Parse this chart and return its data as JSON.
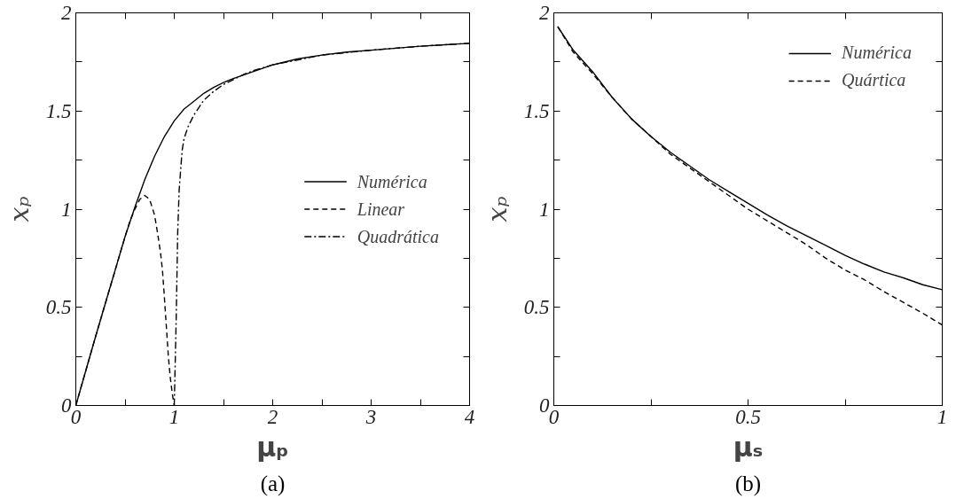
{
  "chart_data": [
    {
      "type": "line",
      "xlabel": "μₚ",
      "ylabel": "xₚ",
      "xlim": [
        0,
        4
      ],
      "ylim": [
        0,
        2
      ],
      "xticks": [
        0,
        {
          "value": 0.5,
          "label": null
        },
        1,
        {
          "value": 1.5,
          "label": null
        },
        2,
        {
          "value": 2.5,
          "label": null
        },
        3,
        {
          "value": 3.5,
          "label": null
        },
        4
      ],
      "yticks": [
        0,
        {
          "value": 0.25,
          "label": null
        },
        0.5,
        {
          "value": 0.75,
          "label": null
        },
        1,
        {
          "value": 1.25,
          "label": null
        },
        1.5,
        {
          "value": 1.75,
          "label": null
        },
        2
      ],
      "legend": "right",
      "annotations": [
        "(a)"
      ],
      "series": [
        {
          "name": "Numérica",
          "color": "#000000",
          "line_style": "solid",
          "x": [
            0,
            0.1,
            0.2,
            0.3,
            0.4,
            0.5,
            0.6,
            0.7,
            0.8,
            0.9,
            1.0,
            1.1,
            1.2,
            1.3,
            1.4,
            1.5,
            1.6,
            1.8,
            2.0,
            2.25,
            2.5,
            2.75,
            3.0,
            3.5,
            4.0
          ],
          "values": [
            0,
            0.175,
            0.35,
            0.52,
            0.69,
            0.86,
            1.01,
            1.15,
            1.27,
            1.37,
            1.45,
            1.51,
            1.55,
            1.59,
            1.62,
            1.645,
            1.665,
            1.7,
            1.735,
            1.765,
            1.785,
            1.8,
            1.81,
            1.83,
            1.845
          ]
        },
        {
          "name": "Linear",
          "color": "#000000",
          "line_style": "dashed",
          "x": [
            0,
            0.1,
            0.2,
            0.3,
            0.4,
            0.5,
            0.55,
            0.6,
            0.65,
            0.7,
            0.75,
            0.8,
            0.83,
            0.86,
            0.88,
            0.9,
            0.92,
            0.94,
            0.96,
            0.98,
            1.0
          ],
          "values": [
            0,
            0.175,
            0.35,
            0.52,
            0.69,
            0.86,
            0.94,
            1.0,
            1.05,
            1.07,
            1.05,
            0.97,
            0.88,
            0.78,
            0.69,
            0.55,
            0.4,
            0.25,
            0.14,
            0.06,
            0
          ]
        },
        {
          "name": "Quadrática",
          "color": "#000000",
          "line_style": "dashdot",
          "x": [
            1.0,
            1.02,
            1.035,
            1.05,
            1.08,
            1.1,
            1.14,
            1.2,
            1.3,
            1.4,
            1.5,
            1.6,
            1.7,
            1.8,
            2.0,
            2.5,
            3.0,
            3.5,
            4.0
          ],
          "values": [
            0,
            0.45,
            0.88,
            1.1,
            1.3,
            1.36,
            1.42,
            1.48,
            1.555,
            1.6,
            1.635,
            1.66,
            1.685,
            1.705,
            1.735,
            1.785,
            1.81,
            1.83,
            1.845
          ]
        }
      ]
    },
    {
      "type": "line",
      "xlabel": "μₛ",
      "ylabel": "xₚ",
      "xlim": [
        0,
        1
      ],
      "ylim": [
        0,
        2
      ],
      "xticks": [
        0,
        {
          "value": 0.25,
          "label": null
        },
        0.5,
        {
          "value": 0.75,
          "label": null
        },
        1
      ],
      "yticks": [
        0,
        {
          "value": 0.25,
          "label": null
        },
        0.5,
        {
          "value": 0.75,
          "label": null
        },
        1,
        {
          "value": 1.25,
          "label": null
        },
        1.5,
        {
          "value": 1.75,
          "label": null
        },
        2
      ],
      "legend": "top right",
      "annotations": [
        "(b)"
      ],
      "series": [
        {
          "name": "Numérica",
          "color": "#000000",
          "line_style": "solid",
          "x": [
            0.01,
            0.05,
            0.1,
            0.15,
            0.2,
            0.25,
            0.3,
            0.35,
            0.4,
            0.45,
            0.5,
            0.55,
            0.6,
            0.65,
            0.7,
            0.75,
            0.8,
            0.85,
            0.9,
            0.95,
            1.0
          ],
          "values": [
            1.93,
            1.81,
            1.7,
            1.57,
            1.46,
            1.37,
            1.29,
            1.22,
            1.15,
            1.09,
            1.03,
            0.97,
            0.915,
            0.865,
            0.815,
            0.765,
            0.72,
            0.68,
            0.65,
            0.615,
            0.59
          ]
        },
        {
          "name": "Quártica",
          "color": "#000000",
          "line_style": "dashed",
          "x": [
            0.01,
            0.05,
            0.1,
            0.15,
            0.2,
            0.25,
            0.3,
            0.35,
            0.4,
            0.45,
            0.5,
            0.55,
            0.6,
            0.65,
            0.7,
            0.75,
            0.8,
            0.85,
            0.9,
            0.95,
            1.0
          ],
          "values": [
            1.93,
            1.8,
            1.69,
            1.57,
            1.46,
            1.37,
            1.28,
            1.21,
            1.14,
            1.07,
            1.0,
            0.94,
            0.88,
            0.82,
            0.75,
            0.69,
            0.64,
            0.58,
            0.525,
            0.47,
            0.41
          ]
        }
      ]
    }
  ]
}
